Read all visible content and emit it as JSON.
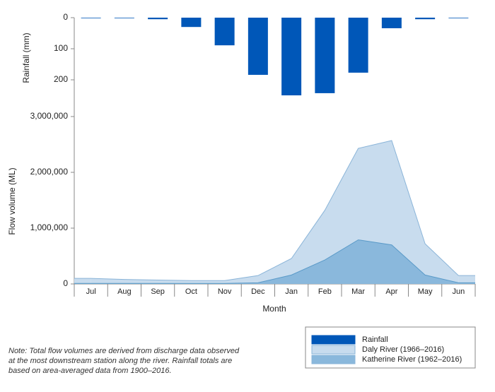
{
  "chart_data": [
    {
      "type": "bar",
      "y_label": "Rainfall (mm)",
      "inverted": true,
      "categories": [
        "Jul",
        "Aug",
        "Sep",
        "Oct",
        "Nov",
        "Dec",
        "Jan",
        "Feb",
        "Mar",
        "Apr",
        "May",
        "Jun"
      ],
      "series": [
        {
          "name": "Rainfall",
          "color": "#0057b8",
          "values": [
            1,
            0,
            5,
            30,
            89,
            184,
            250,
            243,
            177,
            34,
            5,
            1
          ]
        }
      ],
      "ylim": [
        0,
        250
      ],
      "yticks": [
        0,
        100,
        200
      ]
    },
    {
      "type": "area",
      "x_label": "Month",
      "y_label": "Flow volume (ML)",
      "categories": [
        "Jul",
        "Aug",
        "Sep",
        "Oct",
        "Nov",
        "Dec",
        "Jan",
        "Feb",
        "Mar",
        "Apr",
        "May",
        "Jun"
      ],
      "series": [
        {
          "name": "Daly River (1966–2016)",
          "color": "#c8dcee",
          "values": [
            100000,
            80000,
            70000,
            60000,
            60000,
            150000,
            456000,
            1320000,
            2430000,
            2570000,
            720000,
            150000
          ]
        },
        {
          "name": "Katherine River (1962–2016)",
          "color": "#8ab8dc",
          "values": [
            10000,
            10000,
            10000,
            10000,
            10000,
            20000,
            160000,
            430000,
            790000,
            700000,
            160000,
            20000
          ]
        }
      ],
      "ylim": [
        0,
        3000000
      ],
      "yticks": [
        0,
        {
          "value": 1000000,
          "label": "1,000,000"
        },
        {
          "value": 2000000,
          "label": "2,000,000"
        },
        {
          "value": 3000000,
          "label": "3,000,000"
        }
      ]
    }
  ],
  "note": [
    "Note: Total flow volumes are derived from discharge data observed",
    "at the most downstream station along the river. Rainfall totals are",
    "based on area-averaged data from 1900–2016."
  ]
}
